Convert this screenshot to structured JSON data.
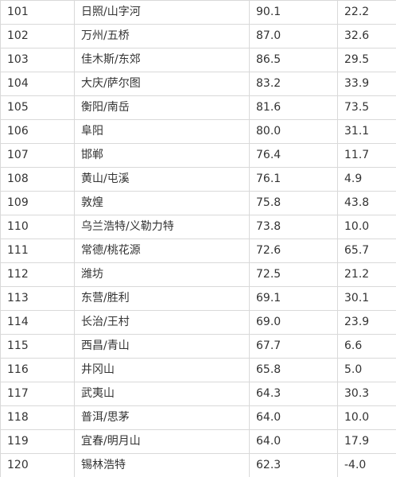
{
  "table": {
    "rows": [
      {
        "rank": "101",
        "name": "日照/山字河",
        "score": "90.1",
        "value": "22.2"
      },
      {
        "rank": "102",
        "name": "万州/五桥",
        "score": "87.0",
        "value": "32.6"
      },
      {
        "rank": "103",
        "name": "佳木斯/东郊",
        "score": "86.5",
        "value": "29.5"
      },
      {
        "rank": "104",
        "name": "大庆/萨尔图",
        "score": "83.2",
        "value": "33.9"
      },
      {
        "rank": "105",
        "name": "衡阳/南岳",
        "score": "81.6",
        "value": "73.5"
      },
      {
        "rank": "106",
        "name": "阜阳",
        "score": "80.0",
        "value": "31.1"
      },
      {
        "rank": "107",
        "name": "邯郸",
        "score": "76.4",
        "value": "11.7"
      },
      {
        "rank": "108",
        "name": "黄山/屯溪",
        "score": "76.1",
        "value": "4.9"
      },
      {
        "rank": "109",
        "name": "敦煌",
        "score": "75.8",
        "value": "43.8"
      },
      {
        "rank": "110",
        "name": "乌兰浩特/义勒力特",
        "score": "73.8",
        "value": "10.0"
      },
      {
        "rank": "111",
        "name": "常德/桃花源",
        "score": "72.6",
        "value": "65.7"
      },
      {
        "rank": "112",
        "name": "潍坊",
        "score": "72.5",
        "value": "21.2"
      },
      {
        "rank": "113",
        "name": "东营/胜利",
        "score": "69.1",
        "value": "30.1"
      },
      {
        "rank": "114",
        "name": "长治/王村",
        "score": "69.0",
        "value": "23.9"
      },
      {
        "rank": "115",
        "name": "西昌/青山",
        "score": "67.7",
        "value": "6.6"
      },
      {
        "rank": "116",
        "name": "井冈山",
        "score": "65.8",
        "value": "5.0"
      },
      {
        "rank": "117",
        "name": "武夷山",
        "score": "64.3",
        "value": "30.3"
      },
      {
        "rank": "118",
        "name": "普洱/思茅",
        "score": "64.0",
        "value": "10.0"
      },
      {
        "rank": "119",
        "name": "宜春/明月山",
        "score": "64.0",
        "value": "17.9"
      },
      {
        "rank": "120",
        "name": "锡林浩特",
        "score": "62.3",
        "value": "-4.0"
      }
    ]
  }
}
